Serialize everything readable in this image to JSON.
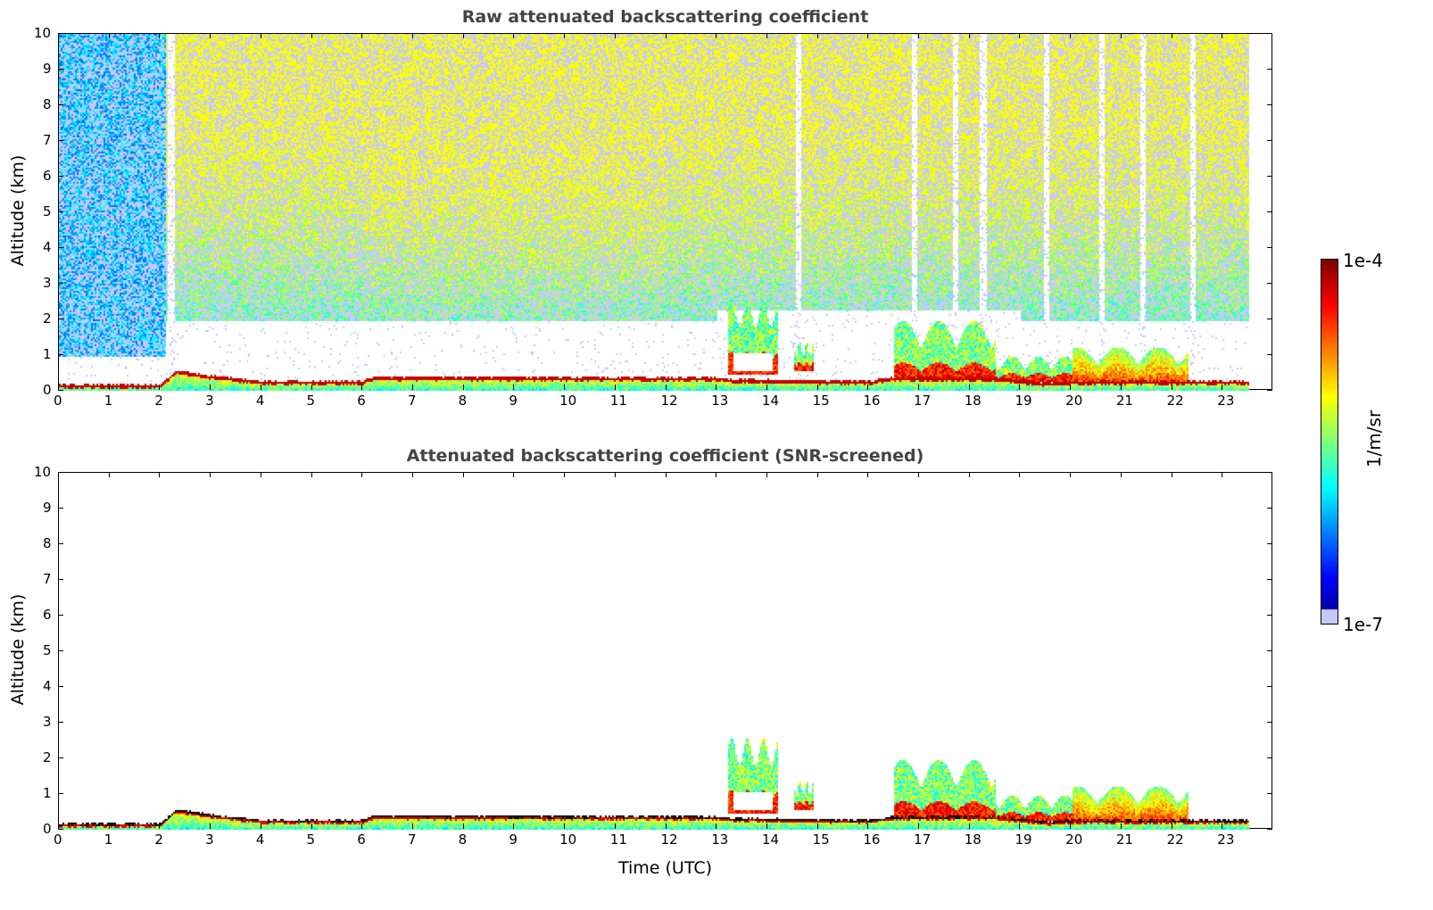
{
  "chart_data": [
    {
      "type": "heatmap",
      "title": "Raw attenuated backscattering coefficient",
      "xlabel": "",
      "ylabel": "Altitude (km)",
      "xlim": [
        0,
        24
      ],
      "ylim": [
        0,
        10
      ],
      "xticks": [
        "0",
        "1",
        "2",
        "3",
        "4",
        "5",
        "6",
        "7",
        "8",
        "9",
        "10",
        "11",
        "12",
        "13",
        "14",
        "15",
        "16",
        "17",
        "18",
        "19",
        "20",
        "21",
        "22",
        "23"
      ],
      "yticks": [
        "0",
        "1",
        "2",
        "3",
        "4",
        "5",
        "6",
        "7",
        "8",
        "9",
        "10"
      ],
      "data_end_hour": 23.5,
      "boundary_layer_top_km": [
        [
          0,
          0.2
        ],
        [
          2,
          0.2
        ],
        [
          2.3,
          0.6
        ],
        [
          3,
          0.45
        ],
        [
          4,
          0.3
        ],
        [
          6,
          0.3
        ],
        [
          6.2,
          0.42
        ],
        [
          13,
          0.4
        ],
        [
          13.3,
          0.35
        ],
        [
          16,
          0.3
        ],
        [
          16.5,
          0.4
        ],
        [
          18.5,
          0.4
        ],
        [
          19.5,
          0.25
        ],
        [
          20,
          0.3
        ],
        [
          22.3,
          0.3
        ],
        [
          23.5,
          0.3
        ]
      ],
      "cloud_layers": [
        {
          "start": 13.2,
          "end": 14.2,
          "base_km": 0.5,
          "top_km": 2.6
        },
        {
          "start": 14.5,
          "end": 14.9,
          "base_km": 0.6,
          "top_km": 1.4
        },
        {
          "start": 16.5,
          "end": 18.5,
          "base_km": 0.3,
          "top_km": 2.0
        },
        {
          "start": 18.5,
          "end": 20,
          "base_km": 0.3,
          "top_km": 1.0
        },
        {
          "start": 20,
          "end": 22.3,
          "base_km": 0.3,
          "top_km": 1.25
        },
        {
          "start": 23.4,
          "end": 23.5,
          "base_km": 0.6,
          "top_km": 0.8
        }
      ],
      "noise": true
    },
    {
      "type": "heatmap",
      "title": "Attenuated backscattering coefficient (SNR-screened)",
      "xlabel": "Time (UTC)",
      "ylabel": "Altitude (km)",
      "xlim": [
        0,
        24
      ],
      "ylim": [
        0,
        10
      ],
      "xticks": [
        "0",
        "1",
        "2",
        "3",
        "4",
        "5",
        "6",
        "7",
        "8",
        "9",
        "10",
        "11",
        "12",
        "13",
        "14",
        "15",
        "16",
        "17",
        "18",
        "19",
        "20",
        "21",
        "22",
        "23"
      ],
      "yticks": [
        "0",
        "1",
        "2",
        "3",
        "4",
        "5",
        "6",
        "7",
        "8",
        "9",
        "10"
      ],
      "noise": false
    }
  ],
  "colorbar": {
    "label": "1/m/sr",
    "max_label": "1e-4",
    "min_label": "1e-7",
    "range": [
      1e-07,
      0.0001
    ],
    "scale": "log"
  }
}
